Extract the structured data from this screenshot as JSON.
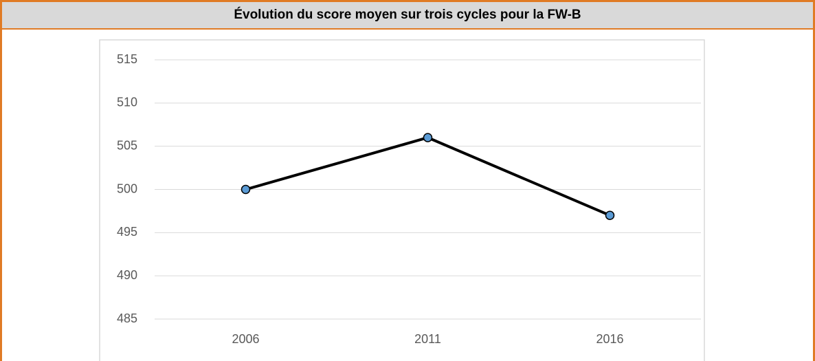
{
  "chart_data": {
    "type": "line",
    "title": "Évolution du score moyen sur trois cycles pour la FW-B",
    "categories": [
      "2006",
      "2011",
      "2016"
    ],
    "values": [
      500,
      506,
      497
    ],
    "color": "#000000",
    "marker_color": "#5b9bd5",
    "ylim": [
      485,
      515
    ],
    "yticks": [
      485,
      490,
      495,
      500,
      505,
      510,
      515
    ],
    "grid": true
  }
}
